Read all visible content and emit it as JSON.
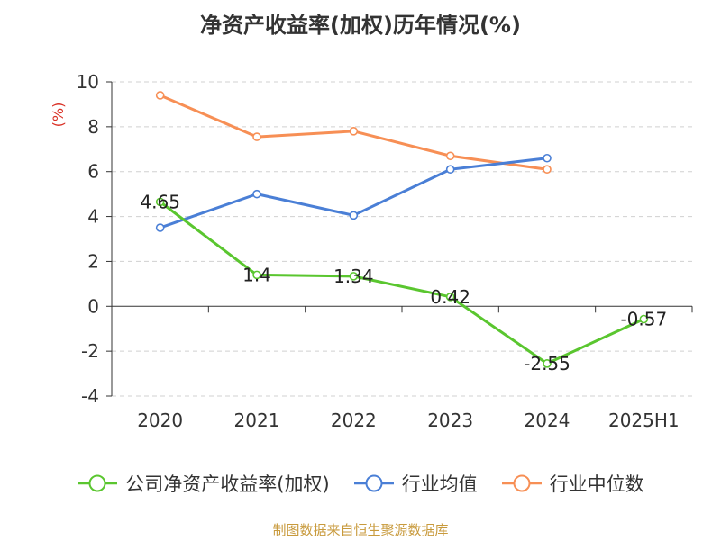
{
  "chart_data": {
    "type": "line",
    "title": "净资产收益率(加权)历年情况(%)",
    "ylabel": "(%)",
    "categories": [
      "2020",
      "2021",
      "2022",
      "2023",
      "2024",
      "2025H1"
    ],
    "ylim": [
      -4,
      10
    ],
    "yticks": [
      "10",
      "8",
      "6",
      "4",
      "2",
      "0",
      "-2",
      "-4"
    ],
    "grid": true,
    "legend_position": "bottom",
    "series": [
      {
        "name": "公司净资产收益率(加权)",
        "color": "#5ac62f",
        "values": [
          4.65,
          1.4,
          1.34,
          0.42,
          -2.55,
          -0.57
        ],
        "labels": [
          "4.65",
          "1.4",
          "1.34",
          "0.42",
          "-2.55",
          "-0.57"
        ]
      },
      {
        "name": "行业均值",
        "color": "#4a7fd6",
        "values": [
          3.5,
          5.0,
          4.05,
          6.1,
          6.6,
          null
        ]
      },
      {
        "name": "行业中位数",
        "color": "#f78f55",
        "values": [
          9.4,
          7.55,
          7.8,
          6.7,
          6.1,
          null
        ]
      }
    ]
  },
  "source_note": "制图数据来自恒生聚源数据库"
}
